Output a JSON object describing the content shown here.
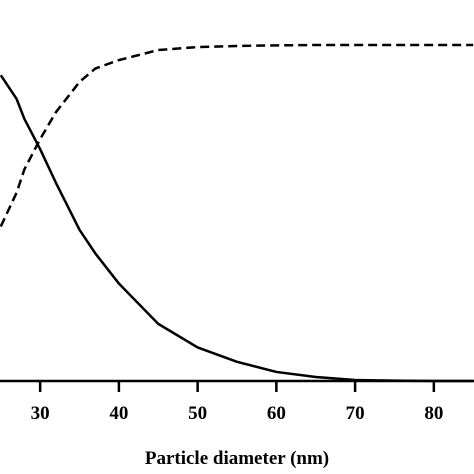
{
  "chart_data": {
    "type": "line",
    "x_label": "Particle diameter (nm)",
    "x": [
      25,
      27,
      28,
      30,
      32,
      35,
      37,
      40,
      45,
      50,
      55,
      60,
      65,
      70,
      75,
      80,
      85
    ],
    "series": [
      {
        "color": "#000000",
        "dash": false,
        "values": [
          0.91,
          0.84,
          0.78,
          0.69,
          0.59,
          0.45,
          0.38,
          0.29,
          0.17,
          0.1,
          0.057,
          0.027,
          0.012,
          0.003,
          0.001,
          0,
          0
        ]
      },
      {
        "color": "#000000",
        "dash": true,
        "values": [
          0.46,
          0.56,
          0.63,
          0.72,
          0.8,
          0.89,
          0.93,
          0.955,
          0.985,
          0.994,
          0.997,
          0.999,
          1,
          1,
          1,
          1,
          1
        ]
      }
    ],
    "xlim": [
      24.9,
      85.1
    ],
    "xticks": [
      30,
      40,
      50,
      60,
      70,
      80
    ],
    "ylim": [
      0,
      1
    ]
  }
}
